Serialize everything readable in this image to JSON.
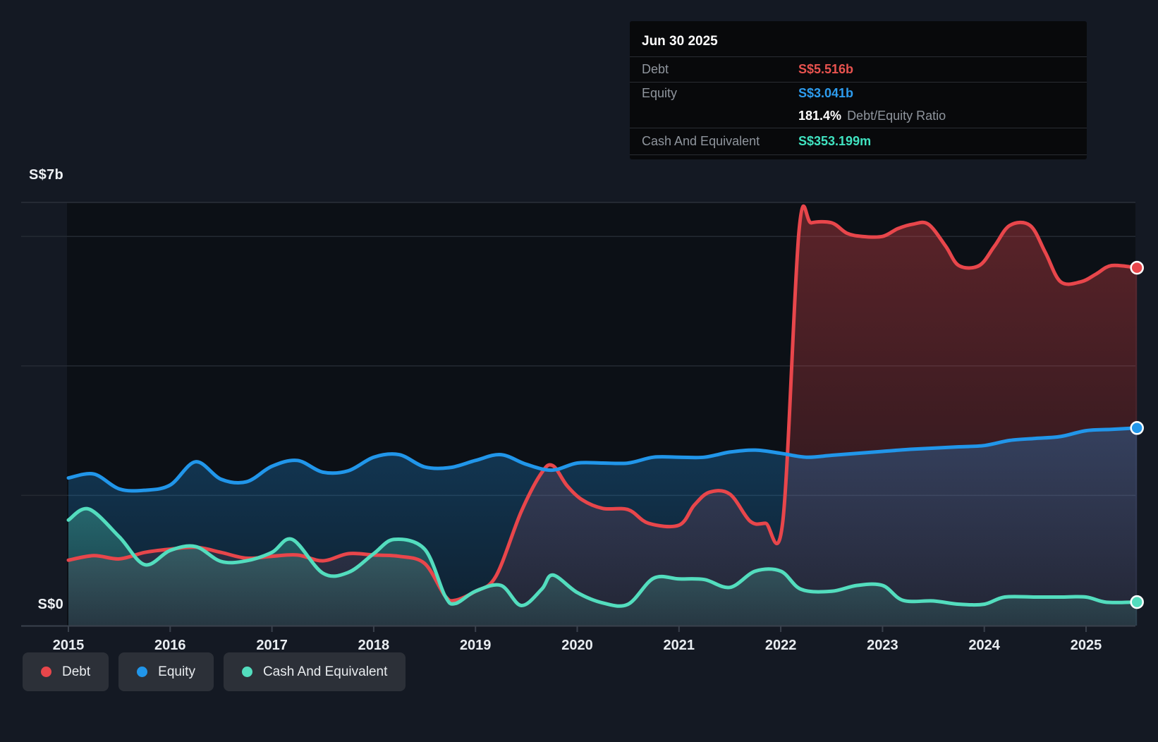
{
  "tooltip": {
    "date": "Jun 30 2025",
    "debt_label": "Debt",
    "debt_value": "S$5.516b",
    "equity_label": "Equity",
    "equity_value": "S$3.041b",
    "ratio_value": "181.4%",
    "ratio_label": "Debt/Equity Ratio",
    "cash_label": "Cash And Equivalent",
    "cash_value": "S$353.199m"
  },
  "y_axis": {
    "top_label": "S$7b",
    "zero_label": "S$0"
  },
  "legend": {
    "items": [
      {
        "label": "Debt",
        "color": "#e8464b"
      },
      {
        "label": "Equity",
        "color": "#2196ea"
      },
      {
        "label": "Cash And Equivalent",
        "color": "#53ddbe"
      }
    ]
  },
  "colors": {
    "debt": "#e8464b",
    "equity": "#2196ea",
    "cash": "#53ddbe",
    "debt_value_text": "#e8534f",
    "equity_value_text": "#2d9cee",
    "cash_value_text": "#40e2c0",
    "background": "#141923",
    "plot_background": "#0c1016",
    "tooltip_background": "#08090b",
    "legend_chip_background": "#2c3038",
    "grid": "#242a33",
    "plot_top_border": "#2b313a",
    "axis": "#3a414c",
    "tick_label": "#e9edf1",
    "muted_text": "#8f959d"
  },
  "chart_data": {
    "type": "area",
    "title": "",
    "xlabel": "",
    "ylabel": "",
    "x_unit": "year",
    "x_range": [
      2015,
      2025.5
    ],
    "ylim": [
      0,
      7
    ],
    "y_gridline_values": [
      2,
      4,
      6
    ],
    "x_tick_labels": [
      "2015",
      "2016",
      "2017",
      "2018",
      "2019",
      "2020",
      "2021",
      "2022",
      "2023",
      "2024",
      "2025"
    ],
    "legend_position": "bottom-left",
    "values_unit": "S$ billions",
    "latest": {
      "date": "Jun 30 2025",
      "debt": 5.516,
      "equity": 3.041,
      "cash": 0.353199,
      "debt_equity_ratio_pct": 181.4
    },
    "series": [
      {
        "name": "Debt",
        "color": "#e8464b",
        "fill_opacity": [
          0.36,
          0.1
        ],
        "points": [
          [
            2015,
            1.0
          ],
          [
            2015.25,
            1.07
          ],
          [
            2015.5,
            1.02
          ],
          [
            2015.75,
            1.12
          ],
          [
            2016,
            1.17
          ],
          [
            2016.25,
            1.2
          ],
          [
            2016.5,
            1.12
          ],
          [
            2016.75,
            1.03
          ],
          [
            2017,
            1.06
          ],
          [
            2017.25,
            1.08
          ],
          [
            2017.5,
            0.99
          ],
          [
            2017.75,
            1.1
          ],
          [
            2018,
            1.08
          ],
          [
            2018.25,
            1.06
          ],
          [
            2018.5,
            0.95
          ],
          [
            2018.7,
            0.45
          ],
          [
            2018.8,
            0.38
          ],
          [
            2019,
            0.52
          ],
          [
            2019.2,
            0.75
          ],
          [
            2019.45,
            1.75
          ],
          [
            2019.65,
            2.35
          ],
          [
            2019.76,
            2.46
          ],
          [
            2019.9,
            2.15
          ],
          [
            2020.05,
            1.93
          ],
          [
            2020.25,
            1.8
          ],
          [
            2020.5,
            1.78
          ],
          [
            2020.7,
            1.57
          ],
          [
            2021,
            1.54
          ],
          [
            2021.15,
            1.85
          ],
          [
            2021.3,
            2.05
          ],
          [
            2021.5,
            2.02
          ],
          [
            2021.7,
            1.6
          ],
          [
            2021.85,
            1.57
          ],
          [
            2022.02,
            1.6
          ],
          [
            2022.18,
            6.1
          ],
          [
            2022.3,
            6.21
          ],
          [
            2022.5,
            6.21
          ],
          [
            2022.65,
            6.05
          ],
          [
            2022.8,
            6.0
          ],
          [
            2023,
            6.0
          ],
          [
            2023.15,
            6.12
          ],
          [
            2023.3,
            6.19
          ],
          [
            2023.45,
            6.19
          ],
          [
            2023.62,
            5.85
          ],
          [
            2023.75,
            5.55
          ],
          [
            2023.95,
            5.55
          ],
          [
            2024.1,
            5.85
          ],
          [
            2024.25,
            6.17
          ],
          [
            2024.45,
            6.17
          ],
          [
            2024.6,
            5.75
          ],
          [
            2024.75,
            5.3
          ],
          [
            2024.95,
            5.3
          ],
          [
            2025.1,
            5.42
          ],
          [
            2025.25,
            5.55
          ],
          [
            2025.5,
            5.516
          ]
        ]
      },
      {
        "name": "Equity",
        "color": "#2196ea",
        "fill_opacity": [
          0.3,
          0.12
        ],
        "points": [
          [
            2015,
            2.27
          ],
          [
            2015.25,
            2.33
          ],
          [
            2015.5,
            2.1
          ],
          [
            2015.75,
            2.08
          ],
          [
            2016,
            2.16
          ],
          [
            2016.25,
            2.52
          ],
          [
            2016.5,
            2.25
          ],
          [
            2016.75,
            2.21
          ],
          [
            2017,
            2.45
          ],
          [
            2017.25,
            2.54
          ],
          [
            2017.5,
            2.36
          ],
          [
            2017.75,
            2.38
          ],
          [
            2018,
            2.59
          ],
          [
            2018.25,
            2.63
          ],
          [
            2018.5,
            2.44
          ],
          [
            2018.75,
            2.43
          ],
          [
            2019,
            2.54
          ],
          [
            2019.25,
            2.63
          ],
          [
            2019.5,
            2.48
          ],
          [
            2019.75,
            2.39
          ],
          [
            2020,
            2.5
          ],
          [
            2020.25,
            2.5
          ],
          [
            2020.5,
            2.5
          ],
          [
            2020.75,
            2.59
          ],
          [
            2021,
            2.59
          ],
          [
            2021.25,
            2.59
          ],
          [
            2021.5,
            2.67
          ],
          [
            2021.75,
            2.7
          ],
          [
            2022,
            2.65
          ],
          [
            2022.25,
            2.59
          ],
          [
            2022.5,
            2.62
          ],
          [
            2022.75,
            2.65
          ],
          [
            2023,
            2.68
          ],
          [
            2023.25,
            2.71
          ],
          [
            2023.5,
            2.73
          ],
          [
            2023.75,
            2.75
          ],
          [
            2024,
            2.77
          ],
          [
            2024.25,
            2.85
          ],
          [
            2024.5,
            2.88
          ],
          [
            2024.75,
            2.91
          ],
          [
            2025,
            3.0
          ],
          [
            2025.25,
            3.02
          ],
          [
            2025.5,
            3.041
          ]
        ]
      },
      {
        "name": "Cash And Equivalent",
        "color": "#53ddbe",
        "fill_opacity": [
          0.32,
          0.1
        ],
        "points": [
          [
            2015,
            1.62
          ],
          [
            2015.2,
            1.79
          ],
          [
            2015.5,
            1.36
          ],
          [
            2015.75,
            0.93
          ],
          [
            2016,
            1.15
          ],
          [
            2016.25,
            1.21
          ],
          [
            2016.5,
            0.98
          ],
          [
            2016.75,
            0.99
          ],
          [
            2017,
            1.12
          ],
          [
            2017.2,
            1.32
          ],
          [
            2017.5,
            0.8
          ],
          [
            2017.75,
            0.81
          ],
          [
            2018,
            1.1
          ],
          [
            2018.2,
            1.32
          ],
          [
            2018.5,
            1.17
          ],
          [
            2018.7,
            0.45
          ],
          [
            2018.8,
            0.33
          ],
          [
            2019,
            0.52
          ],
          [
            2019.25,
            0.61
          ],
          [
            2019.45,
            0.3
          ],
          [
            2019.65,
            0.55
          ],
          [
            2019.76,
            0.77
          ],
          [
            2020,
            0.5
          ],
          [
            2020.25,
            0.34
          ],
          [
            2020.5,
            0.32
          ],
          [
            2020.75,
            0.72
          ],
          [
            2021,
            0.71
          ],
          [
            2021.25,
            0.7
          ],
          [
            2021.5,
            0.58
          ],
          [
            2021.75,
            0.83
          ],
          [
            2022,
            0.83
          ],
          [
            2022.2,
            0.55
          ],
          [
            2022.5,
            0.52
          ],
          [
            2022.75,
            0.61
          ],
          [
            2023,
            0.61
          ],
          [
            2023.2,
            0.38
          ],
          [
            2023.5,
            0.37
          ],
          [
            2023.75,
            0.32
          ],
          [
            2024,
            0.32
          ],
          [
            2024.2,
            0.43
          ],
          [
            2024.5,
            0.43
          ],
          [
            2024.75,
            0.43
          ],
          [
            2025,
            0.43
          ],
          [
            2025.2,
            0.35
          ],
          [
            2025.5,
            0.353
          ]
        ]
      }
    ]
  }
}
